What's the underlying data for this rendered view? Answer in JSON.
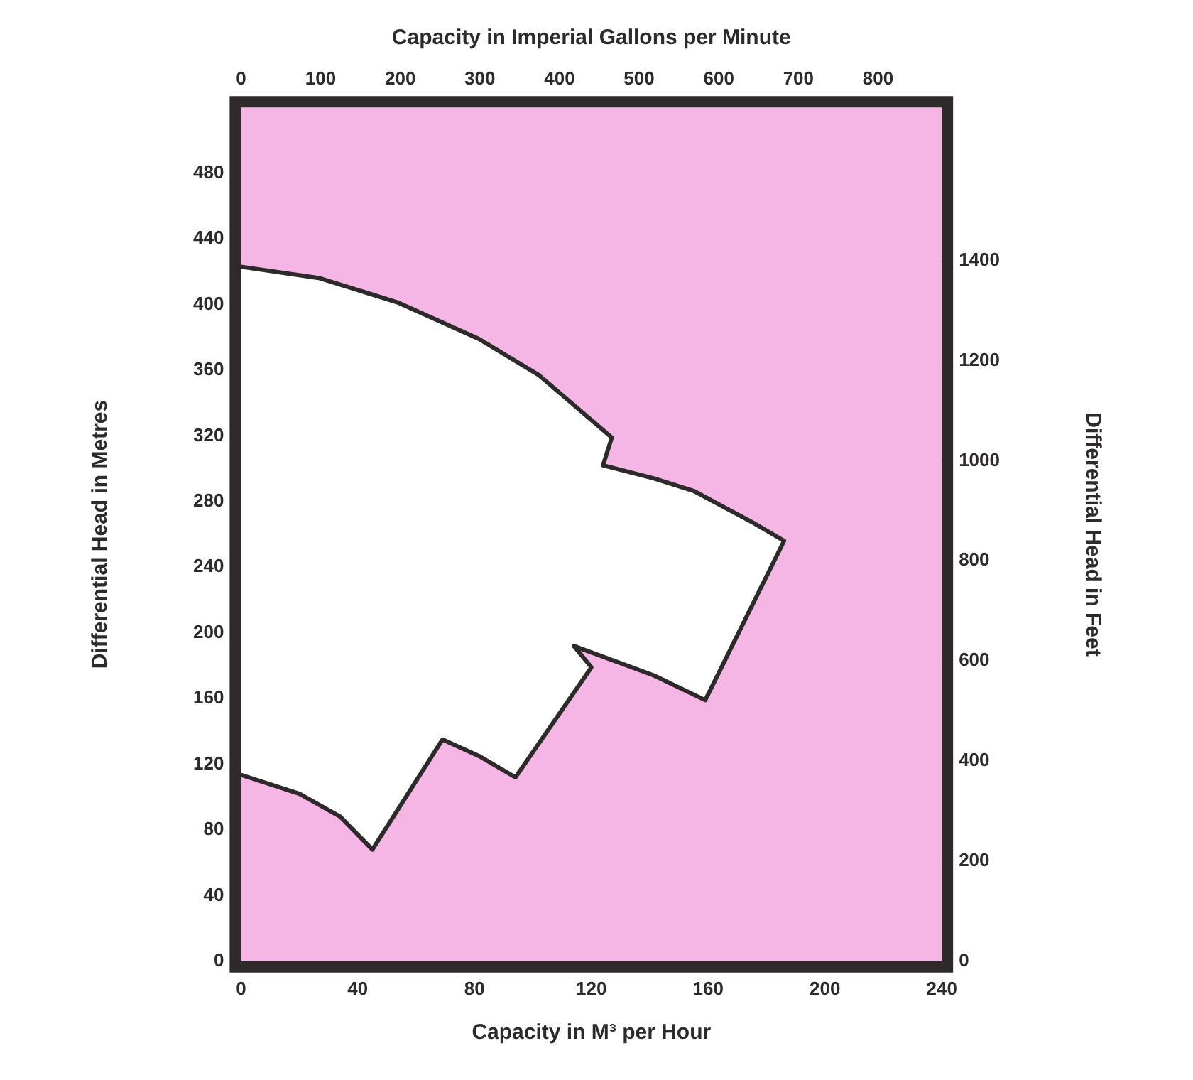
{
  "chart_data": {
    "type": "area",
    "xlabel": "Capacity in M³ per Hour",
    "x2label": "Capacity in Imperial Gallons per Minute",
    "ylabel": "Differential Head in Metres",
    "y2label": "Differential Head in Feet",
    "xlim": [
      0,
      240
    ],
    "xticks": [
      0,
      40,
      80,
      120,
      160,
      200,
      240
    ],
    "x2lim": [
      0,
      880
    ],
    "x2ticks": [
      0,
      100,
      200,
      300,
      400,
      500,
      600,
      700,
      800
    ],
    "ylim": [
      0,
      520
    ],
    "yticks": [
      0,
      40,
      80,
      120,
      160,
      200,
      240,
      280,
      320,
      360,
      400,
      440,
      480
    ],
    "y2lim": [
      0,
      1706
    ],
    "y2ticks": [
      0,
      200,
      400,
      600,
      800,
      1000,
      1200,
      1400
    ],
    "grid": false,
    "legend": false,
    "series": [
      {
        "color": "#ffffff",
        "x": [
          0,
          27,
          54,
          81.5,
          102,
          127,
          124,
          141.5,
          155,
          175.5,
          186,
          159,
          141.5,
          114,
          120,
          94,
          81.5,
          69,
          45,
          34,
          20,
          0
        ],
        "values": [
          423,
          416,
          401,
          379,
          357,
          319,
          302,
          294,
          286.5,
          267,
          256,
          159,
          174,
          192,
          179,
          112,
          125,
          135,
          68,
          88,
          102,
          113.5
        ]
      }
    ]
  }
}
